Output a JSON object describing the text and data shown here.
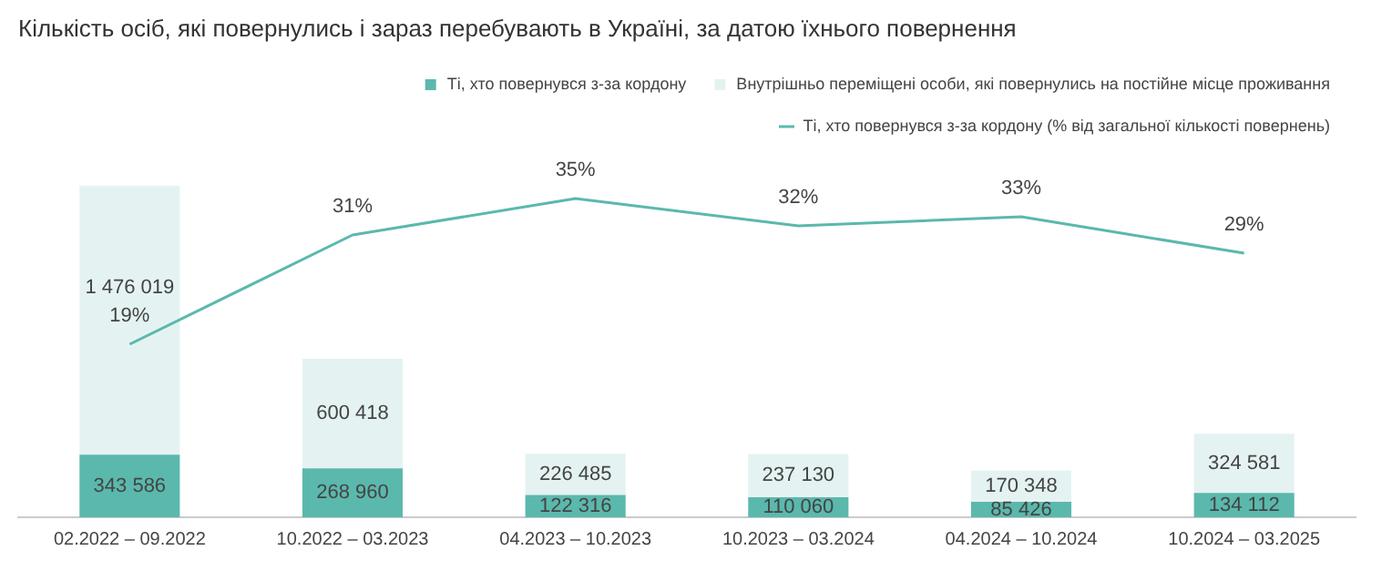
{
  "chart_data": {
    "type": "bar",
    "title": "Кількість осіб, які повернулись і зараз перебувають в Україні, за датою їхнього повернення",
    "categories": [
      "02.2022 – 09.2022",
      "10.2022 – 03.2023",
      "04.2023 – 10.2023",
      "10.2023 – 03.2024",
      "04.2024 – 10.2024",
      "10.2024 – 03.2025"
    ],
    "stacked": true,
    "legend": "top",
    "grid": false,
    "marker": "none",
    "series": [
      {
        "name": "Ті, хто повернувся з-за кордону",
        "color": "#5bb8ad",
        "values": [
          343586,
          268960,
          122316,
          110060,
          85426,
          134112
        ],
        "value_labels": [
          "343 586",
          "268 960",
          "122 316",
          "110 060",
          "85 426",
          "134 112"
        ]
      },
      {
        "name": "Внутрішньо переміщені особи, які повернулись на постійне місце проживання",
        "color": "#e4f3f2",
        "values": [
          1476019,
          600418,
          226485,
          237130,
          170348,
          324581
        ],
        "value_labels": [
          "1 476 019",
          "600 418",
          "226 485",
          "237 130",
          "170 348",
          "324 581"
        ]
      },
      {
        "name": "Ті, хто повернувся з-за кордону (% від загальної кількості повернень)",
        "type": "line",
        "axis": "y2",
        "color": "#5bb8ad",
        "values": [
          19,
          31,
          35,
          32,
          33,
          29
        ],
        "value_labels": [
          "19%",
          "31%",
          "35%",
          "32%",
          "33%",
          "29%"
        ]
      }
    ]
  }
}
